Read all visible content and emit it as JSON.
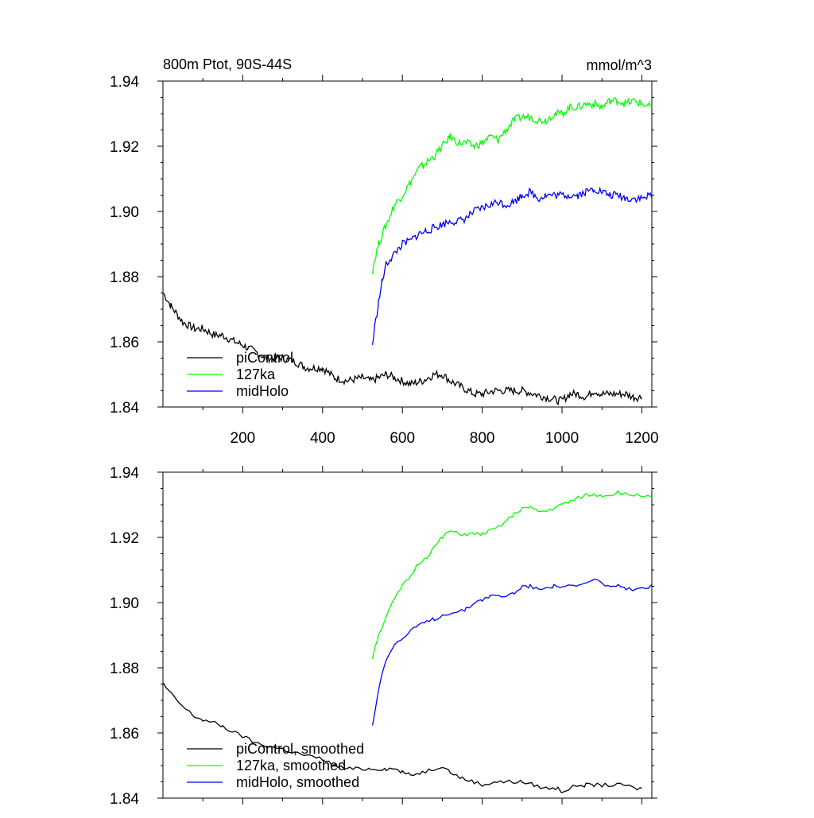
{
  "chart_data": [
    {
      "type": "line",
      "title_left": "800m Ptot, 90S-44S",
      "title_right": "mmol/m^3",
      "xlim": [
        0,
        1225
      ],
      "ylim": [
        1.84,
        1.94
      ],
      "yticks": [
        "1.84",
        "1.86",
        "1.88",
        "1.90",
        "1.92",
        "1.94"
      ],
      "xticks": [
        "200",
        "400",
        "600",
        "800",
        "1000",
        "1200"
      ],
      "show_xtick_labels": true,
      "legend_position": "bottom-left",
      "series": [
        {
          "name": "piControl",
          "color": "#000000",
          "smoothed": false,
          "points": [
            [
              1,
              1.875
            ],
            [
              20,
              1.871
            ],
            [
              50,
              1.866
            ],
            [
              80,
              1.864
            ],
            [
              100,
              1.864
            ],
            [
              130,
              1.862
            ],
            [
              150,
              1.862
            ],
            [
              180,
              1.86
            ],
            [
              200,
              1.859
            ],
            [
              230,
              1.857
            ],
            [
              260,
              1.855
            ],
            [
              300,
              1.855
            ],
            [
              330,
              1.854
            ],
            [
              360,
              1.852
            ],
            [
              400,
              1.852
            ],
            [
              430,
              1.849
            ],
            [
              460,
              1.848
            ],
            [
              500,
              1.849
            ],
            [
              520,
              1.848
            ],
            [
              540,
              1.849
            ],
            [
              560,
              1.85
            ],
            [
              580,
              1.849
            ],
            [
              600,
              1.848
            ],
            [
              620,
              1.847
            ],
            [
              650,
              1.848
            ],
            [
              680,
              1.85
            ],
            [
              700,
              1.85
            ],
            [
              720,
              1.848
            ],
            [
              750,
              1.846
            ],
            [
              780,
              1.844
            ],
            [
              800,
              1.844
            ],
            [
              830,
              1.845
            ],
            [
              860,
              1.845
            ],
            [
              880,
              1.845
            ],
            [
              900,
              1.845
            ],
            [
              930,
              1.844
            ],
            [
              960,
              1.843
            ],
            [
              990,
              1.842
            ],
            [
              1000,
              1.842
            ],
            [
              1020,
              1.844
            ],
            [
              1040,
              1.844
            ],
            [
              1060,
              1.843
            ],
            [
              1080,
              1.845
            ],
            [
              1100,
              1.844
            ],
            [
              1130,
              1.844
            ],
            [
              1160,
              1.844
            ],
            [
              1180,
              1.843
            ],
            [
              1200,
              1.843
            ]
          ]
        },
        {
          "name": "127ka",
          "color": "#00ff00",
          "smoothed": false,
          "points": [
            [
              525,
              1.882
            ],
            [
              530,
              1.885
            ],
            [
              540,
              1.89
            ],
            [
              560,
              1.896
            ],
            [
              580,
              1.902
            ],
            [
              600,
              1.905
            ],
            [
              620,
              1.909
            ],
            [
              640,
              1.913
            ],
            [
              660,
              1.915
            ],
            [
              680,
              1.917
            ],
            [
              700,
              1.92
            ],
            [
              720,
              1.923
            ],
            [
              740,
              1.921
            ],
            [
              760,
              1.921
            ],
            [
              780,
              1.92
            ],
            [
              800,
              1.921
            ],
            [
              820,
              1.923
            ],
            [
              840,
              1.922
            ],
            [
              860,
              1.925
            ],
            [
              880,
              1.928
            ],
            [
              900,
              1.929
            ],
            [
              920,
              1.929
            ],
            [
              940,
              1.928
            ],
            [
              960,
              1.928
            ],
            [
              980,
              1.93
            ],
            [
              1000,
              1.93
            ],
            [
              1020,
              1.932
            ],
            [
              1040,
              1.932
            ],
            [
              1060,
              1.933
            ],
            [
              1080,
              1.933
            ],
            [
              1100,
              1.932
            ],
            [
              1120,
              1.934
            ],
            [
              1140,
              1.934
            ],
            [
              1160,
              1.933
            ],
            [
              1180,
              1.934
            ],
            [
              1200,
              1.933
            ],
            [
              1225,
              1.932
            ]
          ]
        },
        {
          "name": "midHolo",
          "color": "#0000ff",
          "smoothed": false,
          "points": [
            [
              525,
              1.859
            ],
            [
              530,
              1.864
            ],
            [
              540,
              1.872
            ],
            [
              550,
              1.879
            ],
            [
              560,
              1.884
            ],
            [
              580,
              1.887
            ],
            [
              600,
              1.89
            ],
            [
              620,
              1.891
            ],
            [
              640,
              1.893
            ],
            [
              660,
              1.894
            ],
            [
              680,
              1.895
            ],
            [
              700,
              1.896
            ],
            [
              720,
              1.897
            ],
            [
              740,
              1.897
            ],
            [
              760,
              1.898
            ],
            [
              780,
              1.9
            ],
            [
              800,
              1.901
            ],
            [
              820,
              1.902
            ],
            [
              840,
              1.903
            ],
            [
              860,
              1.902
            ],
            [
              880,
              1.903
            ],
            [
              900,
              1.905
            ],
            [
              920,
              1.906
            ],
            [
              940,
              1.904
            ],
            [
              960,
              1.905
            ],
            [
              980,
              1.905
            ],
            [
              1000,
              1.905
            ],
            [
              1020,
              1.905
            ],
            [
              1040,
              1.905
            ],
            [
              1060,
              1.906
            ],
            [
              1080,
              1.907
            ],
            [
              1100,
              1.906
            ],
            [
              1120,
              1.905
            ],
            [
              1140,
              1.905
            ],
            [
              1160,
              1.904
            ],
            [
              1180,
              1.904
            ],
            [
              1200,
              1.904
            ],
            [
              1225,
              1.905
            ]
          ]
        }
      ]
    },
    {
      "type": "line",
      "title_left": "",
      "title_right": "",
      "xlim": [
        0,
        1225
      ],
      "ylim": [
        1.84,
        1.94
      ],
      "yticks": [
        "1.84",
        "1.86",
        "1.88",
        "1.90",
        "1.92",
        "1.94"
      ],
      "xticks": [
        "200",
        "400",
        "600",
        "800",
        "1000",
        "1200"
      ],
      "show_xtick_labels": false,
      "legend_position": "bottom-left",
      "series": [
        {
          "name": "piControl, smoothed",
          "color": "#000000",
          "smoothed": true,
          "points": [
            [
              1,
              1.875
            ],
            [
              20,
              1.872
            ],
            [
              50,
              1.868
            ],
            [
              80,
              1.865
            ],
            [
              100,
              1.864
            ],
            [
              130,
              1.863
            ],
            [
              150,
              1.862
            ],
            [
              180,
              1.86
            ],
            [
              200,
              1.859
            ],
            [
              230,
              1.857
            ],
            [
              260,
              1.856
            ],
            [
              300,
              1.855
            ],
            [
              330,
              1.854
            ],
            [
              360,
              1.853
            ],
            [
              400,
              1.852
            ],
            [
              430,
              1.85
            ],
            [
              460,
              1.849
            ],
            [
              500,
              1.849
            ],
            [
              520,
              1.849
            ],
            [
              540,
              1.849
            ],
            [
              560,
              1.849
            ],
            [
              580,
              1.849
            ],
            [
              600,
              1.848
            ],
            [
              620,
              1.847
            ],
            [
              650,
              1.848
            ],
            [
              680,
              1.849
            ],
            [
              700,
              1.85
            ],
            [
              720,
              1.848
            ],
            [
              750,
              1.846
            ],
            [
              780,
              1.845
            ],
            [
              800,
              1.844
            ],
            [
              830,
              1.845
            ],
            [
              860,
              1.845
            ],
            [
              880,
              1.845
            ],
            [
              900,
              1.845
            ],
            [
              930,
              1.844
            ],
            [
              960,
              1.843
            ],
            [
              990,
              1.843
            ],
            [
              1000,
              1.842
            ],
            [
              1020,
              1.843
            ],
            [
              1040,
              1.844
            ],
            [
              1060,
              1.844
            ],
            [
              1080,
              1.844
            ],
            [
              1100,
              1.844
            ],
            [
              1130,
              1.844
            ],
            [
              1160,
              1.844
            ],
            [
              1180,
              1.843
            ],
            [
              1200,
              1.843
            ]
          ]
        },
        {
          "name": "127ka, smoothed",
          "color": "#00ff00",
          "smoothed": true,
          "points": [
            [
              525,
              1.883
            ],
            [
              530,
              1.886
            ],
            [
              540,
              1.89
            ],
            [
              560,
              1.896
            ],
            [
              580,
              1.901
            ],
            [
              600,
              1.905
            ],
            [
              620,
              1.908
            ],
            [
              640,
              1.912
            ],
            [
              660,
              1.914
            ],
            [
              680,
              1.917
            ],
            [
              700,
              1.92
            ],
            [
              720,
              1.922
            ],
            [
              740,
              1.921
            ],
            [
              760,
              1.921
            ],
            [
              780,
              1.921
            ],
            [
              800,
              1.921
            ],
            [
              820,
              1.922
            ],
            [
              840,
              1.923
            ],
            [
              860,
              1.925
            ],
            [
              880,
              1.927
            ],
            [
              900,
              1.929
            ],
            [
              920,
              1.929
            ],
            [
              940,
              1.928
            ],
            [
              960,
              1.928
            ],
            [
              980,
              1.929
            ],
            [
              1000,
              1.93
            ],
            [
              1020,
              1.931
            ],
            [
              1040,
              1.932
            ],
            [
              1060,
              1.933
            ],
            [
              1080,
              1.933
            ],
            [
              1100,
              1.933
            ],
            [
              1120,
              1.933
            ],
            [
              1140,
              1.934
            ],
            [
              1160,
              1.933
            ],
            [
              1180,
              1.933
            ],
            [
              1200,
              1.933
            ],
            [
              1225,
              1.932
            ]
          ]
        },
        {
          "name": "midHolo, smoothed",
          "color": "#0000ff",
          "smoothed": true,
          "points": [
            [
              525,
              1.862
            ],
            [
              530,
              1.866
            ],
            [
              540,
              1.873
            ],
            [
              550,
              1.879
            ],
            [
              560,
              1.883
            ],
            [
              580,
              1.887
            ],
            [
              600,
              1.889
            ],
            [
              620,
              1.891
            ],
            [
              640,
              1.893
            ],
            [
              660,
              1.894
            ],
            [
              680,
              1.895
            ],
            [
              700,
              1.896
            ],
            [
              720,
              1.897
            ],
            [
              740,
              1.897
            ],
            [
              760,
              1.898
            ],
            [
              780,
              1.9
            ],
            [
              800,
              1.901
            ],
            [
              820,
              1.902
            ],
            [
              840,
              1.902
            ],
            [
              860,
              1.902
            ],
            [
              880,
              1.903
            ],
            [
              900,
              1.905
            ],
            [
              920,
              1.905
            ],
            [
              940,
              1.904
            ],
            [
              960,
              1.905
            ],
            [
              980,
              1.905
            ],
            [
              1000,
              1.905
            ],
            [
              1020,
              1.905
            ],
            [
              1040,
              1.905
            ],
            [
              1060,
              1.906
            ],
            [
              1080,
              1.907
            ],
            [
              1100,
              1.906
            ],
            [
              1120,
              1.905
            ],
            [
              1140,
              1.905
            ],
            [
              1160,
              1.904
            ],
            [
              1180,
              1.904
            ],
            [
              1200,
              1.904
            ],
            [
              1225,
              1.905
            ]
          ]
        }
      ]
    }
  ]
}
